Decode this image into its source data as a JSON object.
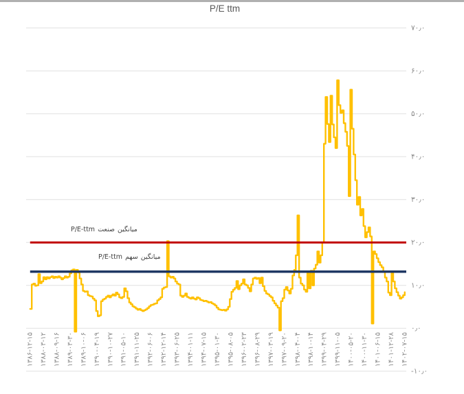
{
  "page": {
    "title": "P/E ttm"
  },
  "chart_data": {
    "type": "line",
    "title": "P/E ttm",
    "series": [
      {
        "name": "P/E ttm",
        "color": "#FFC000",
        "values": [
          4.5,
          10.2,
          10.4,
          9.9,
          10.0,
          12.6,
          10.5,
          10.9,
          11.9,
          11.4,
          11.9,
          11.6,
          11.9,
          12.1,
          11.7,
          12.0,
          11.8,
          12.1,
          11.8,
          11.4,
          11.7,
          12.1,
          11.8,
          12.0,
          12.8,
          13.5,
          13.7,
          -0.8,
          13.6,
          13.0,
          11.6,
          10.2,
          8.7,
          8.5,
          8.6,
          7.7,
          7.5,
          7.4,
          6.9,
          6.5,
          4.0,
          2.8,
          3.0,
          6.3,
          6.7,
          6.9,
          7.3,
          7.6,
          7.2,
          7.6,
          7.9,
          7.6,
          8.3,
          7.9,
          7.2,
          7.0,
          7.3,
          9.3,
          8.6,
          7.0,
          6.0,
          5.6,
          5.1,
          4.9,
          4.6,
          4.3,
          4.5,
          4.2,
          4.0,
          4.2,
          4.4,
          4.7,
          5.1,
          5.4,
          5.5,
          5.7,
          5.8,
          6.5,
          6.8,
          7.2,
          9.2,
          9.5,
          9.6,
          20.3,
          12.1,
          11.8,
          12.0,
          11.6,
          10.9,
          10.4,
          10.2,
          7.6,
          7.3,
          7.6,
          8.1,
          7.3,
          7.1,
          6.9,
          7.2,
          6.9,
          6.7,
          7.2,
          7.0,
          6.6,
          6.5,
          6.3,
          6.4,
          6.2,
          6.0,
          6.1,
          5.8,
          5.6,
          5.3,
          4.8,
          4.4,
          4.3,
          4.2,
          4.3,
          4.1,
          4.4,
          5.0,
          6.8,
          8.5,
          9.0,
          9.4,
          11.0,
          9.1,
          10.0,
          10.4,
          11.4,
          10.2,
          10.0,
          9.4,
          8.6,
          10.2,
          11.6,
          11.8,
          11.5,
          11.7,
          10.5,
          11.8,
          9.8,
          8.7,
          8.1,
          7.9,
          7.5,
          7.2,
          6.4,
          5.8,
          5.3,
          4.8,
          -0.5,
          6.3,
          7.0,
          9.0,
          9.6,
          8.8,
          8.1,
          9.2,
          12.3,
          13.6,
          17.0,
          26.3,
          11.8,
          10.4,
          10.0,
          9.0,
          8.5,
          12.8,
          9.3,
          13.4,
          10.0,
          13.9,
          14.8,
          17.9,
          15.3,
          17.0,
          20.0,
          43.0,
          53.9,
          47.6,
          43.4,
          54.2,
          47.5,
          44.5,
          42.0,
          57.8,
          52.0,
          50.2,
          50.8,
          47.8,
          45.8,
          42.5,
          30.8,
          55.6,
          46.5,
          40.5,
          34.5,
          28.8,
          30.6,
          26.3,
          27.8,
          23.8,
          21.2,
          22.4,
          23.5,
          21.4,
          1.1,
          17.9,
          17.3,
          16.3,
          15.4,
          14.7,
          14.2,
          13.1,
          11.8,
          10.9,
          8.3,
          7.7,
          12.8,
          10.9,
          9.3,
          8.4,
          7.6,
          6.9,
          7.2,
          7.7,
          8.4
        ]
      }
    ],
    "x_tick_labels": [
      "۱۳۸۶-۱۲-۱۵",
      "۱۳۸۸-۰۳-۱۲",
      "۱۳۸۸-۰۹-۱۶",
      "۱۳۸۹-۰۳-۳۰",
      "۱۳۸۹-۱۰-۰۶",
      "۱۳۹۰-۰۴-۱۹",
      "۱۳۹۰-۱۰-۲۷",
      "۱۳۹۱-۰۵-۱۰",
      "۱۳۹۱-۱۱-۲۵",
      "۱۳۹۲-۰۶-۰۶",
      "۱۳۹۲-۱۲-۱۴",
      "۱۳۹۳-۰۶-۲۵",
      "۱۳۹۴-۰۱-۱۱",
      "۱۳۹۴-۰۷-۱۵",
      "۱۳۹۵-۰۱-۳۰",
      "۱۳۹۵-۰۸-۰۵",
      "۱۳۹۶-۰۲-۲۳",
      "۱۳۹۶-۰۸-۲۹",
      "۱۳۹۷-۰۳-۱۹",
      "۱۳۹۷-۰۹-۲۰",
      "۱۳۹۸-۰۴-۰۴",
      "۱۳۹۸-۱۰-۱۴",
      "۱۳۹۹-۰۴-۲۹",
      "۱۳۹۹-۱۱-۰۵",
      "۱۴۰۰-۰۵-۲۰",
      "۱۴۰۰-۱۱-۳۰",
      "۱۴۰۱-۰۶-۱۵",
      "۱۴۰۱-۱۲-۲۸",
      "۱۴۰۲-۰۷-۱۵"
    ],
    "y_axis": {
      "min": -10,
      "max": 70,
      "step": 10,
      "side": "right",
      "tick_labels": [
        "۷۰٫۰",
        "۶۰٫۰",
        "۵۰٫۰",
        "۴۰٫۰",
        "۳۰٫۰",
        "۲۰٫۰",
        "۱۰٫۰",
        "۰٫۰",
        "-۱۰٫۰"
      ]
    },
    "ref_lines": [
      {
        "name": "industry-average",
        "value": 20.0,
        "color": "#C00000",
        "label": "میانگین صنعت P/E-ttm"
      },
      {
        "name": "stock-average",
        "value": 13.2,
        "color": "#1F3864",
        "label": "میانگین سهم P/E-ttm"
      }
    ],
    "grid": true,
    "legend": false
  },
  "colors": {
    "background": "#FFFFFF",
    "grid": "#E0E0E0",
    "axis_text": "#8A8A8A",
    "title_text": "#595959",
    "top_border": "#B0B0B0",
    "annotation_text": "#3F3F3F"
  }
}
